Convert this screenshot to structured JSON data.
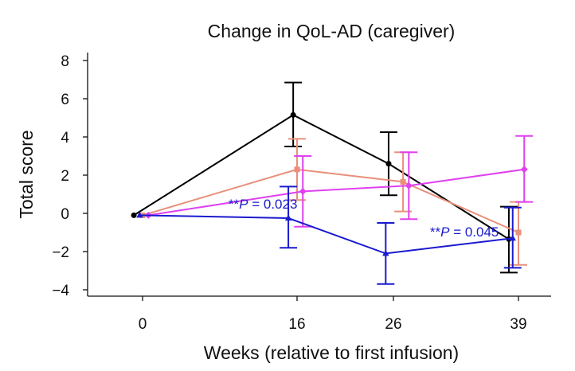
{
  "chart_data": {
    "type": "line",
    "title": "Change in QoL-AD (caregiver)",
    "xlabel": "Weeks (relative to first infusion)",
    "ylabel": "Total score",
    "x_ticks": [
      "0",
      "16",
      "26",
      "39"
    ],
    "y_ticks": [
      "8",
      "6",
      "4",
      "2",
      "0",
      "−2",
      "−4"
    ],
    "y_tick_values": [
      8,
      6,
      4,
      2,
      0,
      -2,
      -4
    ],
    "ylim": [
      -4.2,
      8.3
    ],
    "grid": false,
    "legend": "none",
    "series": [
      {
        "color": "#000000",
        "marker": "circle",
        "x": [
          -0.9,
          15.6,
          25.5,
          38.0
        ],
        "values": [
          -0.1,
          5.15,
          2.6,
          -1.35
        ],
        "err_low": [
          null,
          3.5,
          0.95,
          -3.1
        ],
        "err_high": [
          null,
          6.85,
          4.25,
          0.35
        ]
      },
      {
        "color": "#E8907A",
        "marker": "square",
        "x": [
          0.0,
          16.0,
          27.0,
          39.0
        ],
        "values": [
          -0.1,
          2.3,
          1.65,
          -1.0
        ],
        "err_low": [
          null,
          0.7,
          0.1,
          -2.7
        ],
        "err_high": [
          null,
          3.9,
          3.2,
          0.6
        ]
      },
      {
        "color": "#E040F0",
        "marker": "diamond",
        "x": [
          0.6,
          16.6,
          27.6,
          39.6
        ],
        "values": [
          -0.1,
          1.15,
          1.45,
          2.3
        ],
        "err_low": [
          null,
          -0.7,
          -0.3,
          0.6
        ],
        "err_high": [
          null,
          3.0,
          3.2,
          4.05
        ]
      },
      {
        "color": "#1A1ACF",
        "marker": "triangle",
        "x": [
          -0.3,
          15.1,
          25.2,
          38.4
        ],
        "values": [
          -0.1,
          -0.25,
          -2.1,
          -1.3
        ],
        "err_low": [
          null,
          -1.8,
          -3.7,
          -2.85
        ],
        "err_high": [
          null,
          1.4,
          -0.5,
          0.3
        ]
      }
    ],
    "annotations": [
      {
        "text": "**P = 0.023",
        "x": 8.9,
        "y": 0.25,
        "color": "#1A1ACF"
      },
      {
        "text": "**P = 0.045",
        "x": 29.8,
        "y": -1.2,
        "color": "#1A1ACF"
      }
    ]
  }
}
